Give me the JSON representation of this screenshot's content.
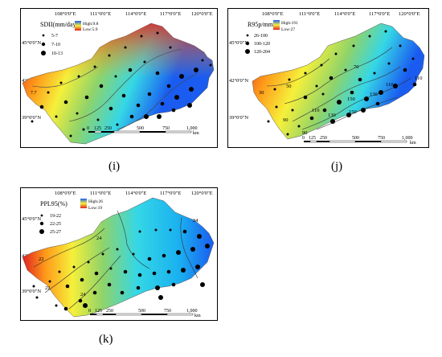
{
  "panels": [
    {
      "id": "i",
      "caption": "(i)",
      "top_lon": [
        "108°0'0\"E",
        "111°0'0\"E",
        "114°0'0\"E",
        "117°0'0\"E",
        "120°0'0\"E"
      ],
      "left_lat": [
        "45°0'0\"N",
        "42°0'0\"N",
        "39°0'0\"N"
      ],
      "title": "SDII(mm/day)",
      "high": "High:9.8",
      "low": "Low:5.9",
      "classes": [
        "5-7",
        "7-10",
        "10-13"
      ],
      "contours": [
        "7.7",
        "8.2",
        "8.8",
        "7.7"
      ],
      "scale": [
        "0",
        "125",
        "250",
        "500",
        "750",
        "1,000"
      ],
      "scale_unit": "km",
      "ramp": "red-high"
    },
    {
      "id": "j",
      "caption": "(j)",
      "top_lon": [
        "108°0'0\"E",
        "111°0'0\"E",
        "114°0'0\"E",
        "117°0'0\"E",
        "120°0'0\"E"
      ],
      "left_lat": [
        "45°0'0\"N",
        "42°0'0\"N",
        "39°0'0\"N"
      ],
      "title": "R95p/mm",
      "high": "High:191",
      "low": "Low:27",
      "classes": [
        "26-100",
        "100-120",
        "120-204"
      ],
      "contours": [
        "30",
        "50",
        "70",
        "90",
        "110",
        "110",
        "130",
        "150",
        "110",
        "90",
        "130",
        "150"
      ],
      "scale": [
        "0",
        "125",
        "250",
        "500",
        "750",
        "1,000"
      ],
      "scale_unit": "km",
      "ramp": "blue-high"
    },
    {
      "id": "k",
      "caption": "(k)",
      "top_lon": [
        "108°0'0\"E",
        "111°0'0\"E",
        "114°0'0\"E",
        "117°0'0\"E",
        "120°0'0\"E"
      ],
      "left_lat": [
        "45°0'0\"N",
        "42°0'0\"N",
        "39°0'0\"N"
      ],
      "title": "PPL95(%)",
      "high": "High:26",
      "low": "Low:19",
      "classes": [
        "19-22",
        "22-25",
        "25-27"
      ],
      "contours": [
        "22",
        "24",
        "22",
        "24",
        "24"
      ],
      "scale": [
        "0",
        "125",
        "250",
        "500",
        "750",
        "1,000"
      ],
      "scale_unit": "km",
      "ramp": "blue-high"
    }
  ],
  "colors": {
    "red": "#e02020",
    "orange": "#ff9a1a",
    "yellow": "#f6f03a",
    "green": "#8fd36a",
    "cyan": "#35d7e6",
    "blue": "#1a5cf0"
  }
}
